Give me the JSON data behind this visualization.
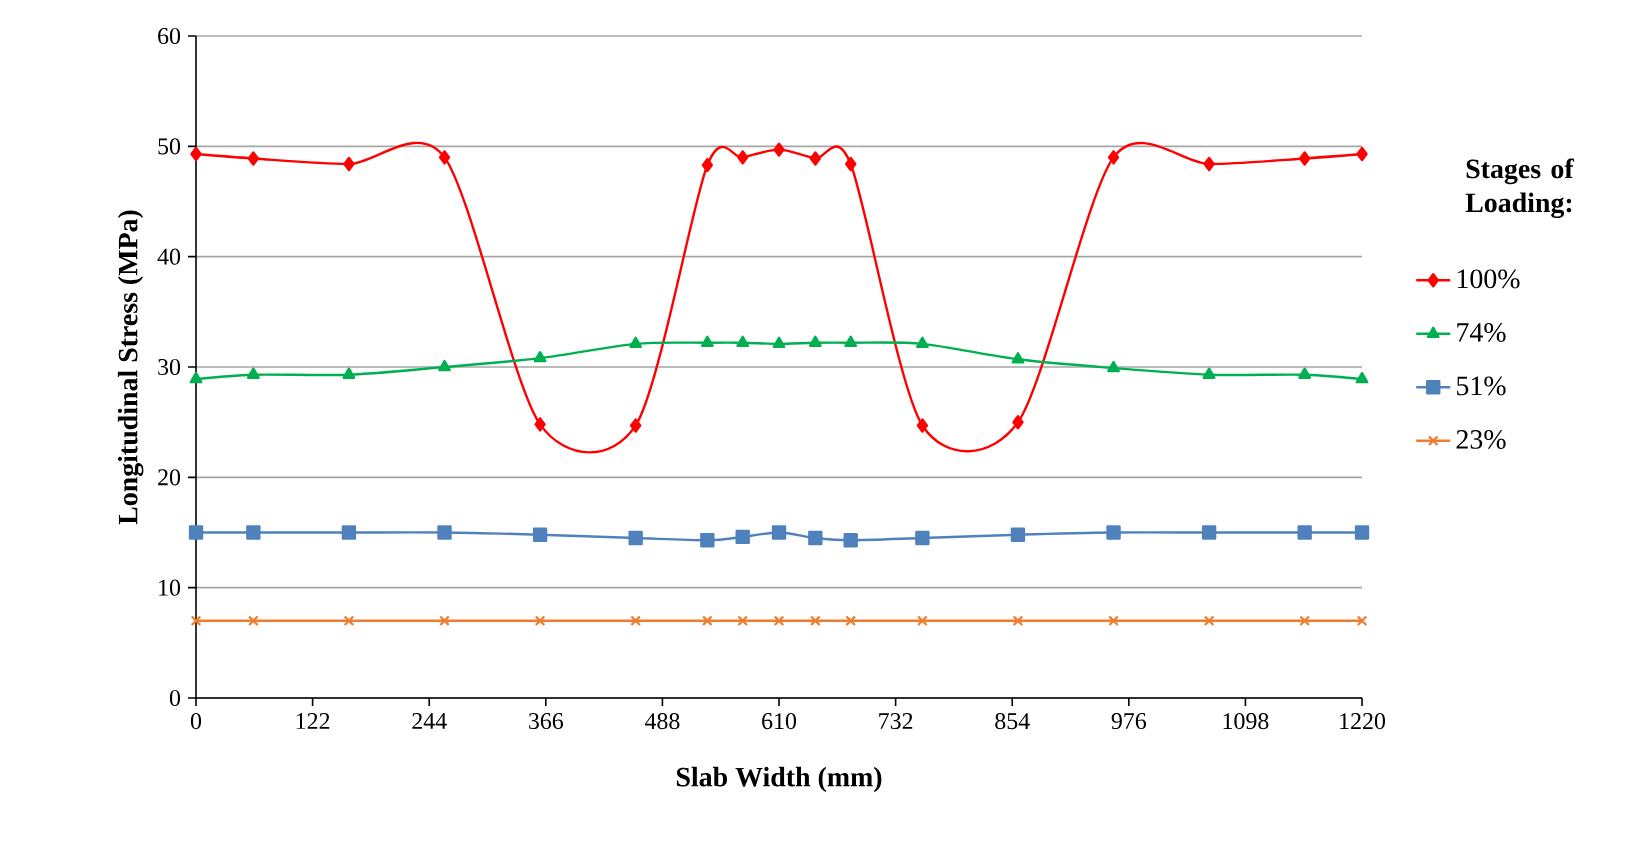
{
  "chart_data": {
    "type": "line",
    "xlabel": "Slab Width (mm)",
    "ylabel": "Longitudinal Stress (MPa)",
    "legend_title": "Stages of Loading:",
    "x": [
      0,
      60,
      160,
      260,
      360,
      460,
      535,
      572,
      610,
      648,
      685,
      760,
      860,
      960,
      1060,
      1160,
      1220
    ],
    "series": [
      {
        "name": "100%",
        "color": "#ff0000",
        "marker": "diamond",
        "values": [
          49.3,
          48.9,
          48.4,
          49.0,
          24.8,
          24.7,
          48.3,
          49.0,
          49.7,
          48.9,
          48.4,
          24.7,
          25.0,
          49.0,
          48.4,
          48.9,
          49.3
        ]
      },
      {
        "name": "74%",
        "color": "#00b050",
        "marker": "triangle",
        "values": [
          28.9,
          29.3,
          29.3,
          30.0,
          30.8,
          32.1,
          32.2,
          32.2,
          32.1,
          32.2,
          32.2,
          32.1,
          30.7,
          29.9,
          29.3,
          29.3,
          28.9
        ]
      },
      {
        "name": "51%",
        "color": "#4f81bd",
        "marker": "square",
        "values": [
          15.0,
          15.0,
          15.0,
          15.0,
          14.8,
          14.5,
          14.3,
          14.6,
          15.0,
          14.5,
          14.3,
          14.5,
          14.8,
          15.0,
          15.0,
          15.0,
          15.0
        ]
      },
      {
        "name": "23%",
        "color": "#ed7d31",
        "marker": "cross",
        "values": [
          7.0,
          7.0,
          7.0,
          7.0,
          7.0,
          7.0,
          7.0,
          7.0,
          7.0,
          7.0,
          7.0,
          7.0,
          7.0,
          7.0,
          7.0,
          7.0,
          7.0
        ]
      }
    ],
    "xlim": [
      0,
      1220
    ],
    "xticks": [
      0,
      122,
      244,
      366,
      488,
      610,
      732,
      854,
      976,
      1098,
      1220
    ],
    "ylim": [
      0,
      60
    ],
    "yticks": [
      0,
      10,
      20,
      30,
      40,
      50,
      60
    ],
    "grid": "y",
    "legend": "right",
    "line_style": "solid"
  }
}
